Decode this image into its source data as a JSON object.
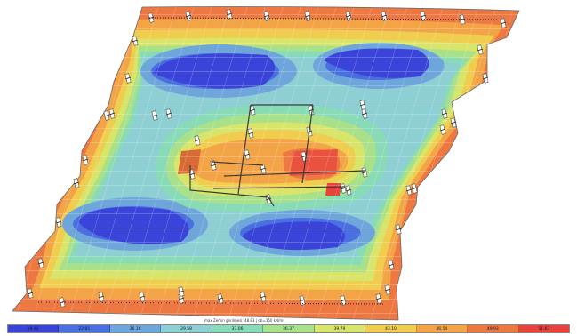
{
  "info_text": "max Zemin gerilmesi: 48.83  |  qb=150 kN/m²",
  "legend": {
    "stops": [
      {
        "label": "19.41",
        "color": "#3b44d8"
      },
      {
        "label": "22.85",
        "color": "#4a6fe0"
      },
      {
        "label": "26.16",
        "color": "#6ea6dc"
      },
      {
        "label": "29.58",
        "color": "#8ecfd3"
      },
      {
        "label": "33.06",
        "color": "#88dbb6"
      },
      {
        "label": "36.37",
        "color": "#a9e08a"
      },
      {
        "label": "39.79",
        "color": "#d8e46a"
      },
      {
        "label": "43.10",
        "color": "#f1cd4f"
      },
      {
        "label": "46.54",
        "color": "#f3a447"
      },
      {
        "label": "49.93",
        "color": "#ee7842"
      },
      {
        "label": "51.63",
        "color": "#e8423c"
      }
    ]
  },
  "icons": {
    "support": "column-support-icon"
  }
}
